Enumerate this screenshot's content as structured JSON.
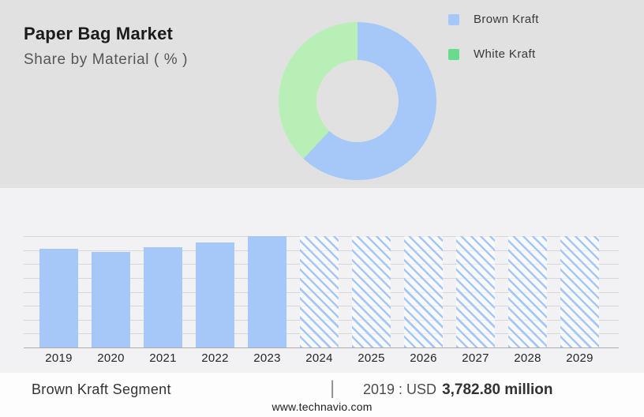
{
  "header": {
    "title": "Paper Bag Market",
    "subtitle": "Share by Material ( % )"
  },
  "legend": {
    "items": [
      {
        "label": "Brown Kraft",
        "swatch": "blue-square-icon",
        "color": "#a5c8f8"
      },
      {
        "label": "White Kraft",
        "swatch": "green-square-icon",
        "color": "#68dc8c"
      }
    ]
  },
  "footer": {
    "segment_label": "Brown Kraft Segment",
    "separator": "|",
    "value_prefix": "2019 : USD",
    "value_bold": "3,782.80 million",
    "website": "www.technavio.com"
  },
  "colors": {
    "top_band_bg": "#e1e1e1",
    "panel_bg": "#f2f2f4",
    "footer_bg": "#fdfdfe",
    "bar_blue": "#a5c8f8",
    "donut_green": "#b7efb6",
    "legend_green": "#68dc8c",
    "gridline": "#d7d7d9",
    "axis": "#ababad"
  },
  "chart_data": [
    {
      "type": "pie",
      "variant": "donut",
      "title": "Paper Bag Market — Share by Material ( % )",
      "labels": [
        "Brown Kraft",
        "White Kraft"
      ],
      "values": [
        62,
        38
      ],
      "colors": [
        "#a5c8f8",
        "#b7efb6"
      ],
      "start_angle_deg": 0,
      "direction": "clockwise",
      "legend_position": "right",
      "hole_ratio": 0.52
    },
    {
      "type": "bar",
      "title": "Brown Kraft Segment size by year",
      "categories": [
        "2019",
        "2020",
        "2021",
        "2022",
        "2023",
        "2024",
        "2025",
        "2026",
        "2027",
        "2028",
        "2029"
      ],
      "values_relative": [
        0.89,
        0.86,
        0.9,
        0.94,
        1.0,
        1.0,
        1.0,
        1.0,
        1.0,
        1.0,
        1.0
      ],
      "value_labels_shown": false,
      "known_value": {
        "category": "2019",
        "value": "USD 3,782.80 million"
      },
      "forecast_start_category": "2024",
      "forecast_style": "diagonal-hatch",
      "bar_color": "#a5c8f8",
      "grid": true,
      "gridline_count": 9,
      "xlabel": "",
      "ylabel": ""
    }
  ]
}
